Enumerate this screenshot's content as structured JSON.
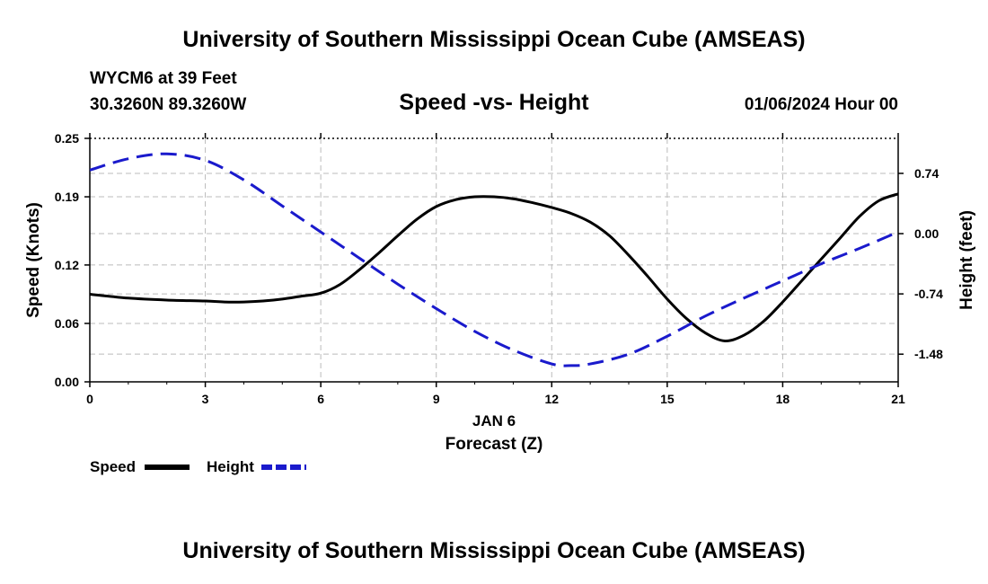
{
  "header": {
    "title": "University of Southern Mississippi Ocean Cube (AMSEAS)",
    "station": "WYCM6 at 39 Feet",
    "coords": "30.3260N  89.3260W",
    "subtitle": "Speed -vs- Height",
    "datetime": "01/06/2024 Hour 00"
  },
  "footer": {
    "title": "University of Southern Mississippi Ocean Cube (AMSEAS)"
  },
  "legend": {
    "speed_label": "Speed",
    "height_label": "Height"
  },
  "chart_data": {
    "type": "line",
    "title": "Speed -vs- Height",
    "xlabel": "Forecast (Z)",
    "xlabel_date": "JAN 6",
    "ylabel": "Speed (Knots)",
    "y2label": "Height (feet)",
    "xlim": [
      0,
      21
    ],
    "ylim": [
      0,
      0.25
    ],
    "y2lim": [
      -1.82,
      1.17
    ],
    "x_ticks": [
      "0",
      "3",
      "6",
      "9",
      "12",
      "15",
      "18",
      "21"
    ],
    "y_ticks": [
      "0.00",
      "0.06",
      "0.12",
      "0.19",
      "0.25"
    ],
    "y2_ticks": [
      "-1.48",
      "-0.74",
      "0.00",
      "0.74"
    ],
    "grid": true,
    "colors": {
      "speed": "#000000",
      "height": "#1a1acc",
      "grid": "#bbbbbb"
    },
    "series": [
      {
        "name": "Speed",
        "axis": "left",
        "style": "solid",
        "x": [
          0,
          1,
          2,
          3,
          3.5,
          4,
          4.5,
          5,
          5.5,
          6,
          6.5,
          7,
          7.5,
          8,
          8.5,
          9,
          9.5,
          10,
          10.5,
          11,
          11.5,
          12,
          12.5,
          13,
          13.5,
          14,
          14.5,
          15,
          15.5,
          16,
          16.5,
          17,
          17.5,
          18,
          18.5,
          19,
          19.5,
          20,
          20.5,
          21
        ],
        "values": [
          0.09,
          0.086,
          0.084,
          0.083,
          0.082,
          0.082,
          0.083,
          0.085,
          0.088,
          0.091,
          0.1,
          0.115,
          0.132,
          0.15,
          0.167,
          0.18,
          0.187,
          0.19,
          0.19,
          0.188,
          0.184,
          0.179,
          0.173,
          0.164,
          0.15,
          0.13,
          0.108,
          0.085,
          0.065,
          0.05,
          0.042,
          0.048,
          0.062,
          0.082,
          0.104,
          0.126,
          0.148,
          0.17,
          0.186,
          0.193
        ]
      },
      {
        "name": "Height",
        "axis": "right",
        "style": "dashed",
        "x": [
          0,
          1,
          2,
          3,
          4,
          5,
          6,
          7,
          8,
          9,
          10,
          11,
          12,
          12.5,
          13,
          14,
          15,
          16,
          17,
          18,
          19,
          20,
          21
        ],
        "values": [
          0.78,
          0.92,
          0.98,
          0.9,
          0.66,
          0.34,
          0.02,
          -0.3,
          -0.62,
          -0.92,
          -1.2,
          -1.43,
          -1.6,
          -1.62,
          -1.6,
          -1.48,
          -1.26,
          -1.01,
          -0.79,
          -0.58,
          -0.37,
          -0.18,
          0.02
        ]
      }
    ]
  }
}
